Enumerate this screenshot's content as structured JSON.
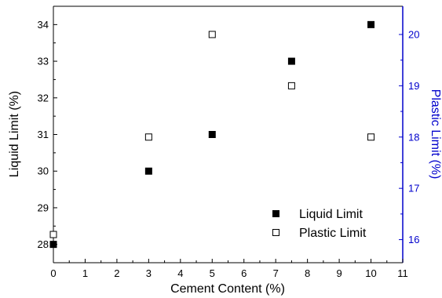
{
  "chart_data": {
    "type": "scatter",
    "xlabel": "Cement Content (%)",
    "ylabel_left": "Liquid Limit (%)",
    "ylabel_right": "Plastic Limit (%)",
    "xlim": [
      0,
      11
    ],
    "ylim_left": [
      27.5,
      34.5
    ],
    "ylim_right": [
      15.55,
      20.55
    ],
    "x_ticks": [
      "0",
      "1",
      "2",
      "3",
      "4",
      "5",
      "6",
      "7",
      "8",
      "9",
      "10",
      "11"
    ],
    "y_left_ticks": [
      "28",
      "29",
      "30",
      "31",
      "32",
      "33",
      "34"
    ],
    "y_right_ticks": [
      "16",
      "17",
      "18",
      "19",
      "20"
    ],
    "legend_position": "bottom-right",
    "grid": false,
    "series": [
      {
        "name": "Liquid Limit",
        "axis": "left",
        "marker": "filled-square",
        "x": [
          0,
          3,
          5,
          7.5,
          10
        ],
        "y": [
          28,
          30,
          31,
          33,
          34
        ]
      },
      {
        "name": "Plastic Limit",
        "axis": "right",
        "marker": "open-square",
        "x": [
          0,
          3,
          5,
          7.5,
          10
        ],
        "y": [
          16.1,
          18,
          20,
          19,
          18
        ]
      }
    ],
    "colors": {
      "left_axis": "#000000",
      "right_axis": "#0000cc",
      "marker": "#000000"
    }
  }
}
